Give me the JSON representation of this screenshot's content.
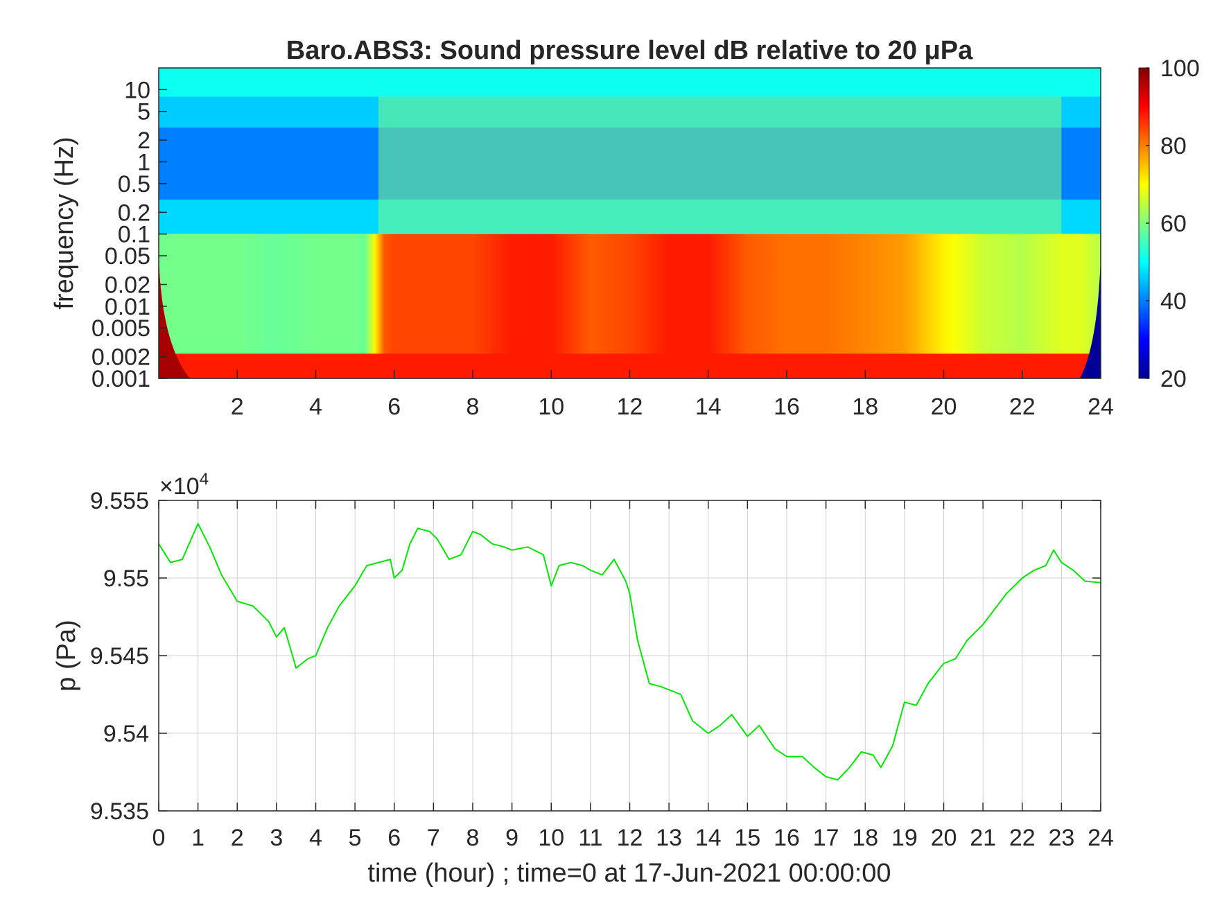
{
  "colors": {
    "line": "#00e600",
    "grid": "#d0d0d0",
    "axis": "#262626"
  },
  "chart_data": [
    {
      "type": "heatmap",
      "title": "Baro.ABS3: Sound pressure level dB relative to 20 μPa",
      "xlabel": "",
      "ylabel": "frequency (Hz)",
      "xlim": [
        0,
        24
      ],
      "ylim": [
        0.001,
        20
      ],
      "yscale": "log",
      "x_ticks": [
        2,
        4,
        6,
        8,
        10,
        12,
        14,
        16,
        18,
        20,
        22,
        24
      ],
      "y_ticks": [
        {
          "value": 10,
          "label": "10"
        },
        {
          "value": 5,
          "label": "5"
        },
        {
          "value": 2,
          "label": "2"
        },
        {
          "value": 1,
          "label": "1"
        },
        {
          "value": 0.5,
          "label": "0.5"
        },
        {
          "value": 0.2,
          "label": "0.2"
        },
        {
          "value": 0.1,
          "label": "0.1"
        },
        {
          "value": 0.05,
          "label": "0.05"
        },
        {
          "value": 0.02,
          "label": "0.02"
        },
        {
          "value": 0.01,
          "label": "0.01"
        },
        {
          "value": 0.005,
          "label": "0.005"
        },
        {
          "value": 0.002,
          "label": "0.002"
        },
        {
          "value": 0.001,
          "label": "0.001"
        }
      ],
      "colormap": "jet",
      "clim": [
        20,
        100
      ],
      "colorbar_ticks": [
        100,
        80,
        60,
        40,
        20
      ],
      "activity_profile": {
        "hours": [
          0,
          1,
          2,
          3,
          4,
          5,
          5.3,
          5.7,
          6,
          7,
          8,
          9,
          10,
          11,
          12,
          13,
          14,
          15,
          16,
          17,
          18,
          19,
          20,
          21,
          22,
          23,
          23.5,
          24
        ],
        "level": [
          0.15,
          0.15,
          0.15,
          0.12,
          0.15,
          0.15,
          0.12,
          0.85,
          0.9,
          0.9,
          0.9,
          1.0,
          1.0,
          0.85,
          0.9,
          1.0,
          1.0,
          0.85,
          0.8,
          0.8,
          0.75,
          0.7,
          0.5,
          0.35,
          0.3,
          0.4,
          0.4,
          0.3
        ]
      },
      "grid": false
    },
    {
      "type": "line",
      "title": "",
      "xlabel": "time (hour) ; time=0 at 17-Jun-2021 00:00:00",
      "ylabel": "p (Pa)",
      "y_multiplier_label": "×10",
      "y_multiplier_exp": "4",
      "xlim": [
        0,
        24
      ],
      "ylim": [
        9.535,
        9.555
      ],
      "x_ticks": [
        0,
        1,
        2,
        3,
        4,
        5,
        6,
        7,
        8,
        9,
        10,
        11,
        12,
        13,
        14,
        15,
        16,
        17,
        18,
        19,
        20,
        21,
        22,
        23,
        24
      ],
      "y_ticks": [
        {
          "value": 9.555,
          "label": "9.555"
        },
        {
          "value": 9.55,
          "label": "9.55"
        },
        {
          "value": 9.545,
          "label": "9.545"
        },
        {
          "value": 9.54,
          "label": "9.54"
        },
        {
          "value": 9.535,
          "label": "9.535"
        }
      ],
      "grid": true,
      "series": [
        {
          "x": [
            0,
            0.3,
            0.6,
            1.0,
            1.3,
            1.6,
            2.0,
            2.4,
            2.8,
            3.0,
            3.2,
            3.5,
            3.8,
            4.0,
            4.3,
            4.6,
            5.0,
            5.3,
            5.6,
            5.9,
            6.0,
            6.2,
            6.4,
            6.6,
            6.9,
            7.1,
            7.4,
            7.7,
            8.0,
            8.2,
            8.5,
            8.8,
            9.0,
            9.4,
            9.8,
            10.0,
            10.2,
            10.5,
            10.8,
            11.0,
            11.3,
            11.6,
            11.9,
            12.0,
            12.2,
            12.5,
            12.8,
            13.0,
            13.3,
            13.6,
            14.0,
            14.3,
            14.6,
            15.0,
            15.3,
            15.7,
            16.0,
            16.4,
            16.7,
            17.0,
            17.3,
            17.6,
            17.9,
            18.2,
            18.4,
            18.7,
            19.0,
            19.3,
            19.6,
            20.0,
            20.3,
            20.6,
            21.0,
            21.3,
            21.6,
            22.0,
            22.3,
            22.6,
            22.8,
            23.0,
            23.3,
            23.6,
            24.0
          ],
          "y": [
            9.5522,
            9.551,
            9.5512,
            9.5535,
            9.552,
            9.5502,
            9.5485,
            9.5482,
            9.5472,
            9.5462,
            9.5468,
            9.5442,
            9.5448,
            9.545,
            9.5468,
            9.5482,
            9.5495,
            9.5508,
            9.551,
            9.5512,
            9.55,
            9.5505,
            9.5522,
            9.5532,
            9.553,
            9.5525,
            9.5512,
            9.5515,
            9.553,
            9.5528,
            9.5522,
            9.552,
            9.5518,
            9.552,
            9.5515,
            9.5495,
            9.5508,
            9.551,
            9.5508,
            9.5505,
            9.5502,
            9.5512,
            9.5498,
            9.549,
            9.546,
            9.5432,
            9.543,
            9.5428,
            9.5425,
            9.5408,
            9.54,
            9.5405,
            9.5412,
            9.5398,
            9.5405,
            9.539,
            9.5385,
            9.5385,
            9.5378,
            9.5372,
            9.537,
            9.5378,
            9.5388,
            9.5386,
            9.5378,
            9.5392,
            9.542,
            9.5418,
            9.5432,
            9.5445,
            9.5448,
            9.546,
            9.547,
            9.548,
            9.549,
            9.55,
            9.5505,
            9.5508,
            9.5518,
            9.551,
            9.5505,
            9.5498,
            9.5497
          ]
        }
      ]
    }
  ]
}
